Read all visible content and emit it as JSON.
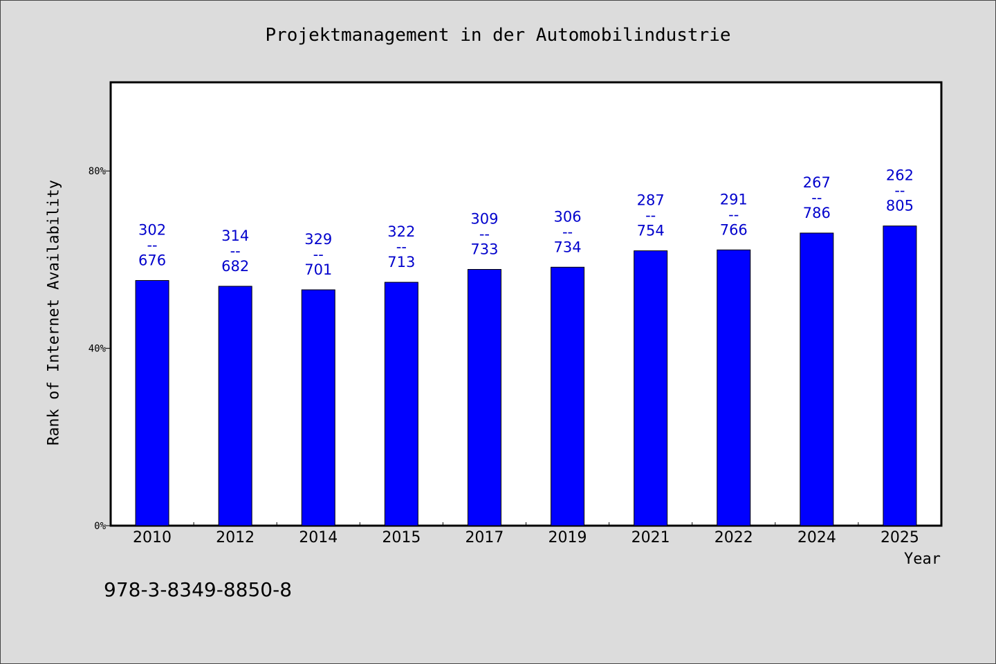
{
  "chart_data": {
    "type": "bar",
    "title": "Projektmanagement in der Automobilindustrie",
    "xlabel": "Year",
    "ylabel": "Rank of Internet Availability",
    "ylim": [
      0,
      100
    ],
    "yticks": [
      0,
      40,
      80
    ],
    "ytick_labels": [
      "0%",
      "40%",
      "80%"
    ],
    "grid": false,
    "categories": [
      "2010",
      "2012",
      "2014",
      "2015",
      "2017",
      "2019",
      "2021",
      "2022",
      "2024",
      "2025"
    ],
    "values": [
      55.3,
      54.0,
      53.2,
      54.9,
      57.8,
      58.3,
      62.0,
      62.2,
      66.0,
      67.6
    ],
    "data_labels": [
      [
        "302",
        "--",
        "676"
      ],
      [
        "314",
        "--",
        "682"
      ],
      [
        "329",
        "--",
        "701"
      ],
      [
        "322",
        "--",
        "713"
      ],
      [
        "309",
        "--",
        "733"
      ],
      [
        "306",
        "--",
        "734"
      ],
      [
        "287",
        "--",
        "754"
      ],
      [
        "291",
        "--",
        "766"
      ],
      [
        "267",
        "--",
        "786"
      ],
      [
        "262",
        "--",
        "805"
      ]
    ],
    "colors": {
      "bar": "#0000ff",
      "label": "#0000cc",
      "plot_bg": "#ffffff",
      "page_bg": "#dcdcdc"
    }
  },
  "footer": {
    "code": "978-3-8349-8850-8"
  }
}
